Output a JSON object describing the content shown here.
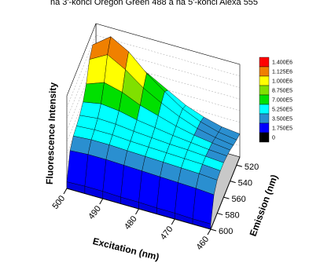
{
  "chart_data": {
    "type": "surface3d",
    "title": "na 3'-konci Oregon Green 488 a na 5'-konci Alexa 555",
    "xlabel": "Excitation (nm)",
    "ylabel": "Emission (nm)",
    "zlabel": "Fluorescence Intensity",
    "x": [
      500,
      495,
      490,
      485,
      480,
      475,
      470,
      465,
      460
    ],
    "y": [
      510,
      520,
      530,
      540,
      550,
      560,
      570,
      580,
      590,
      600
    ],
    "xlim": [
      500,
      460
    ],
    "ylim": [
      510,
      600
    ],
    "zlim": [
      0,
      1400000
    ],
    "xticks": [
      500,
      490,
      480,
      470,
      460
    ],
    "yticks": [
      520,
      540,
      560,
      580,
      600
    ],
    "values": [
      [
        900000,
        1100000,
        1000000,
        850000,
        700000,
        550000,
        450000,
        380000,
        350000
      ],
      [
        1200000,
        1400000,
        1250000,
        1000000,
        800000,
        620000,
        500000,
        420000,
        380000
      ],
      [
        1100000,
        1250000,
        1100000,
        900000,
        750000,
        620000,
        520000,
        460000,
        420000
      ],
      [
        850000,
        950000,
        880000,
        760000,
        680000,
        600000,
        540000,
        500000,
        470000
      ],
      [
        700000,
        750000,
        720000,
        660000,
        620000,
        580000,
        550000,
        520000,
        500000
      ],
      [
        620000,
        650000,
        640000,
        610000,
        590000,
        570000,
        560000,
        540000,
        520000
      ],
      [
        580000,
        600000,
        600000,
        580000,
        570000,
        560000,
        550000,
        540000,
        520000
      ],
      [
        550000,
        570000,
        570000,
        560000,
        550000,
        540000,
        530000,
        520000,
        500000
      ],
      [
        450000,
        470000,
        470000,
        460000,
        450000,
        440000,
        430000,
        420000,
        400000
      ],
      [
        100000,
        110000,
        110000,
        100000,
        100000,
        90000,
        90000,
        80000,
        80000
      ]
    ],
    "levels": [
      {
        "value": 1400000,
        "label": "1.400E6"
      },
      {
        "value": 1125000,
        "label": "1.125E6"
      },
      {
        "value": 1000000,
        "label": "1.000E6"
      },
      {
        "value": 875000,
        "label": "8.750E5"
      },
      {
        "value": 700000,
        "label": "7.000E5"
      },
      {
        "value": 525000,
        "label": "5.250E5"
      },
      {
        "value": 350000,
        "label": "3.500E5"
      },
      {
        "value": 175000,
        "label": "1.750E5"
      },
      0
    ],
    "level_colors": [
      "#ff0000",
      "#f08000",
      "#ffff00",
      "#80e000",
      "#00e000",
      "#00ffff",
      "#2a8fd0",
      "#0000ff",
      "#000000"
    ]
  }
}
